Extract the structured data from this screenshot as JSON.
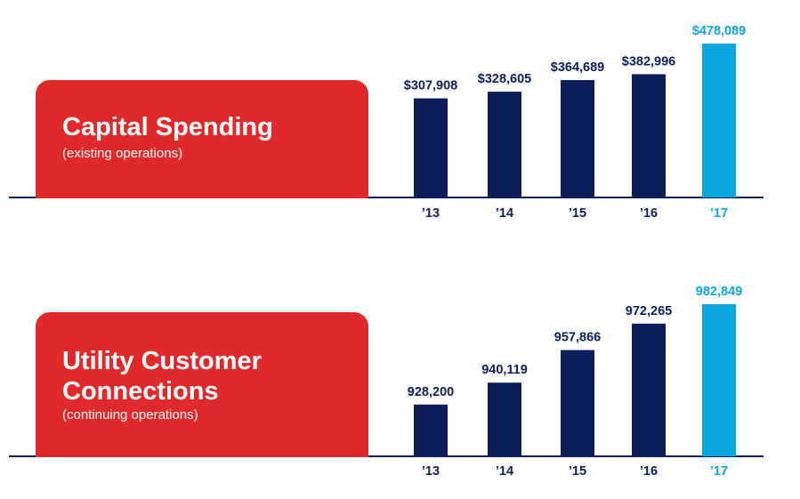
{
  "colors": {
    "label_box": "#e0292b",
    "bar": "#0c1f5a",
    "highlight": "#0aa6df",
    "axis": "#0c1f5a"
  },
  "panels": [
    {
      "title": "Capital Spending",
      "subtitle": "(existing operations)"
    },
    {
      "title": "Utility Customer Connections",
      "subtitle": "(continuing operations)"
    }
  ],
  "chart_data": [
    {
      "type": "bar",
      "title": "Capital Spending",
      "subtitle": "(existing operations)",
      "categories": [
        "’13",
        "’14",
        "’15",
        "’16",
        "’17"
      ],
      "values": [
        307908,
        328605,
        364689,
        382996,
        478089
      ],
      "value_labels": [
        "$307,908",
        "$328,605",
        "$364,689",
        "$382,996",
        "$478,089"
      ],
      "highlight_index": 4,
      "ylim": [
        0,
        478089
      ],
      "grid": false
    },
    {
      "type": "bar",
      "title": "Utility Customer Connections",
      "subtitle": "(continuing operations)",
      "categories": [
        "’13",
        "’14",
        "’15",
        "’16",
        "’17"
      ],
      "values": [
        928200,
        940119,
        957866,
        972265,
        982849
      ],
      "value_labels": [
        "928,200",
        "940,119",
        "957,866",
        "972,265",
        "982,849"
      ],
      "highlight_index": 4,
      "ylim": [
        900000,
        982849
      ],
      "grid": false
    }
  ]
}
